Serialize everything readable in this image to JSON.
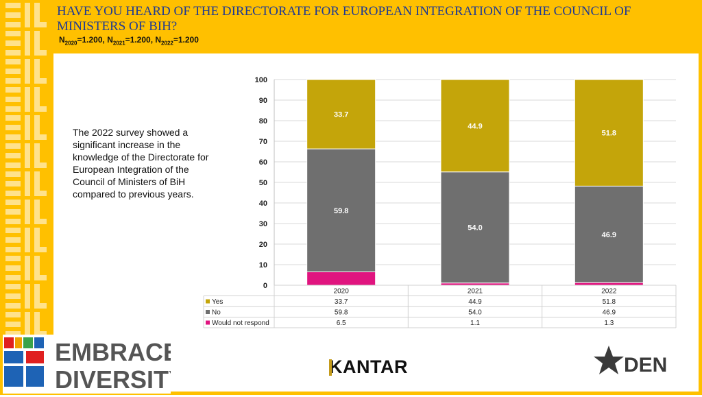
{
  "header": {
    "title": "HAVE YOU HEARD OF THE DIRECTORATE FOR EUROPEAN INTEGRATION OF THE COUNCIL OF MINISTERS OF BIH?",
    "sample_n": [
      {
        "label": "N",
        "year": "2020",
        "value": "=1.200, "
      },
      {
        "label": "N",
        "year": "2021",
        "value": "=1.200, "
      },
      {
        "label": "N",
        "year": "2022",
        "value": "=1.200"
      }
    ]
  },
  "note": "The 2022 survey showed a significant increase in the knowledge of the Directorate for European Integration of the Council of Ministers of BiH compared to previous years.",
  "colors": {
    "accent": "#ffc000",
    "yes": "#c4a50a",
    "no": "#6f6f6f",
    "would_not_respond": "#e0147f"
  },
  "chart_data": {
    "type": "bar",
    "stacked": true,
    "categories": [
      "2020",
      "2021",
      "2022"
    ],
    "series": [
      {
        "name": "Would not respond",
        "values": [
          6.5,
          1.1,
          1.3
        ],
        "color": "#e0147f"
      },
      {
        "name": "No",
        "values": [
          59.8,
          54.0,
          46.9
        ],
        "color": "#6f6f6f"
      },
      {
        "name": "Yes",
        "values": [
          33.7,
          44.9,
          51.8
        ],
        "color": "#c4a50a"
      }
    ],
    "data_labels_series": [
      "Yes",
      "No"
    ],
    "table_rows": [
      {
        "name": "Yes",
        "values": [
          "33.7",
          "44.9",
          "51.8"
        ],
        "color": "#c4a50a"
      },
      {
        "name": "No",
        "values": [
          "59.8",
          "54.0",
          "46.9"
        ],
        "color": "#6f6f6f"
      },
      {
        "name": "Would not respond",
        "values": [
          "6.5",
          "1.1",
          "1.3"
        ],
        "color": "#e0147f"
      }
    ],
    "ylim": [
      0,
      100
    ],
    "yticks": [
      "0",
      "10",
      "20",
      "30",
      "40",
      "50",
      "60",
      "70",
      "80",
      "90",
      "100"
    ],
    "grid": true,
    "legend": "data-table-left"
  },
  "logos": {
    "embrace_line1": "EMBRACE",
    "embrace_line2": "DIVERSITY",
    "kantar": "KANTAR",
    "den": "DEN"
  }
}
